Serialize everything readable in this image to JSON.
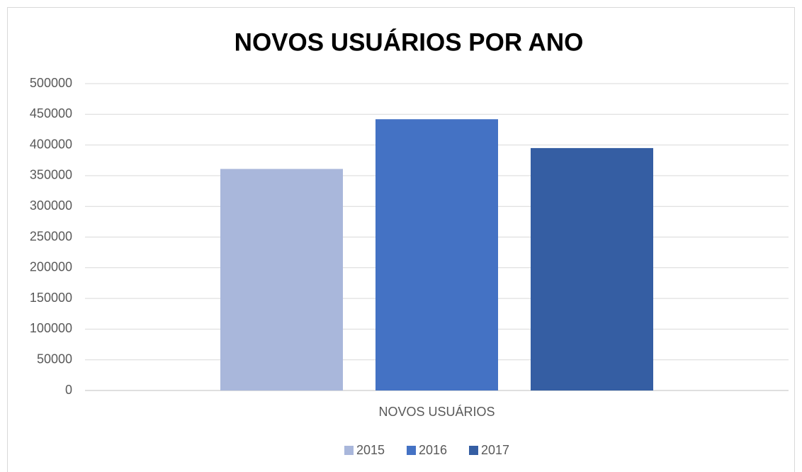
{
  "chart_data": {
    "type": "bar",
    "title": "NOVOS USUÁRIOS POR ANO",
    "categories": [
      "NOVOS USUÁRIOS"
    ],
    "series": [
      {
        "name": "2015",
        "color": "#a9b7db",
        "values": [
          361000
        ]
      },
      {
        "name": "2016",
        "color": "#4472c4",
        "values": [
          442000
        ]
      },
      {
        "name": "2017",
        "color": "#355ea3",
        "values": [
          395000
        ]
      }
    ],
    "ylim": [
      0,
      500000
    ],
    "yticks": [
      0,
      50000,
      100000,
      150000,
      200000,
      250000,
      300000,
      350000,
      400000,
      450000,
      500000
    ],
    "grid": true,
    "legend": "bottom"
  }
}
